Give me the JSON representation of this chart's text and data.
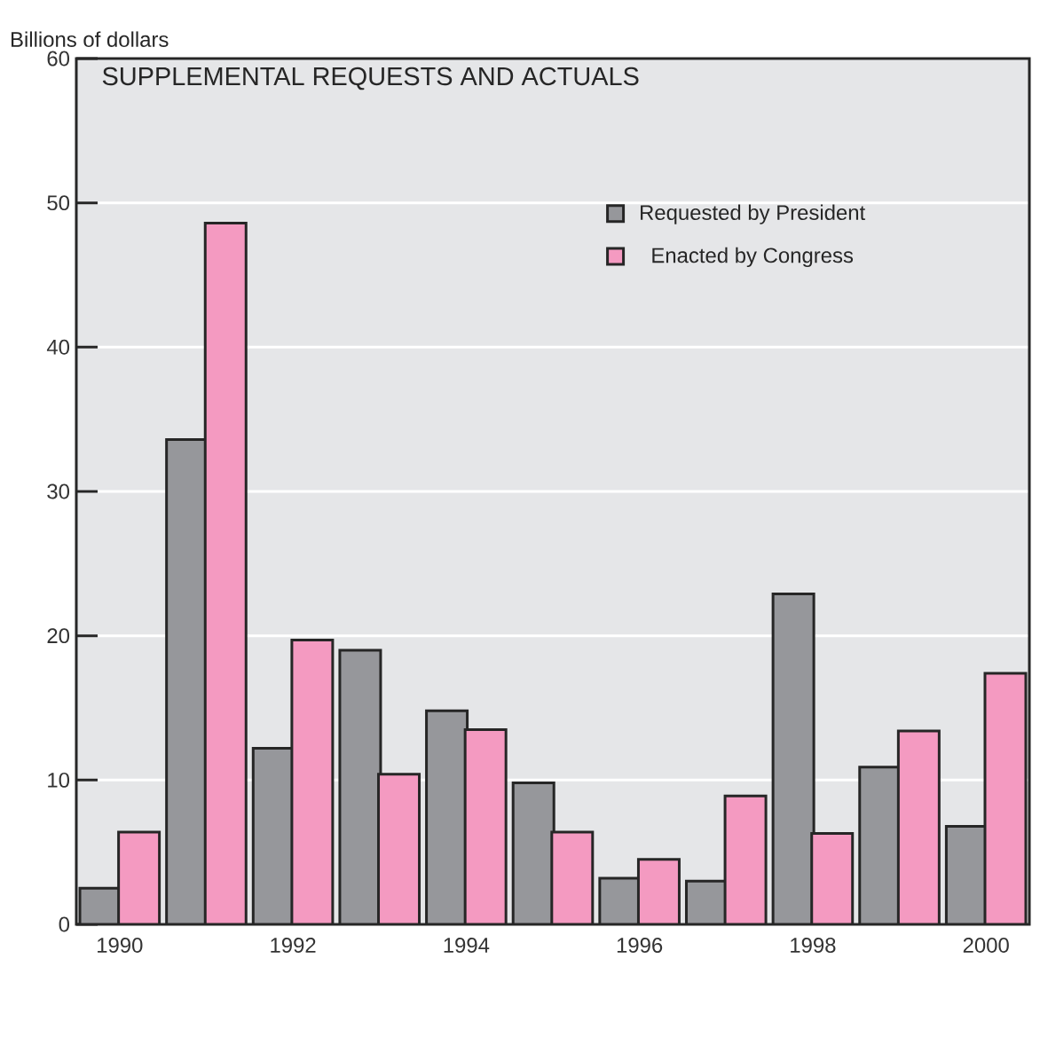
{
  "chart_data": {
    "type": "bar",
    "title": "SUPPLEMENTAL REQUESTS AND ACTUALS",
    "ylabel": "Billions of dollars",
    "categories": [
      "1990",
      null,
      "1992",
      null,
      "1994",
      null,
      "1996",
      null,
      "1998",
      null,
      "2000"
    ],
    "series": [
      {
        "name": "Requested by President",
        "color": "#96979b",
        "values": [
          2.5,
          33.6,
          12.2,
          19.0,
          14.8,
          9.8,
          3.2,
          3.0,
          22.9,
          10.9,
          6.8
        ]
      },
      {
        "name": "Enacted by Congress",
        "color": "#f49ac1",
        "values": [
          6.4,
          48.6,
          19.7,
          10.4,
          13.5,
          6.4,
          4.5,
          8.9,
          6.3,
          13.4,
          17.4
        ]
      }
    ],
    "ylim": [
      0,
      60
    ],
    "yticks": [
      0,
      10,
      20,
      30,
      40,
      50,
      60
    ],
    "grid": "y",
    "legend": "top right"
  }
}
